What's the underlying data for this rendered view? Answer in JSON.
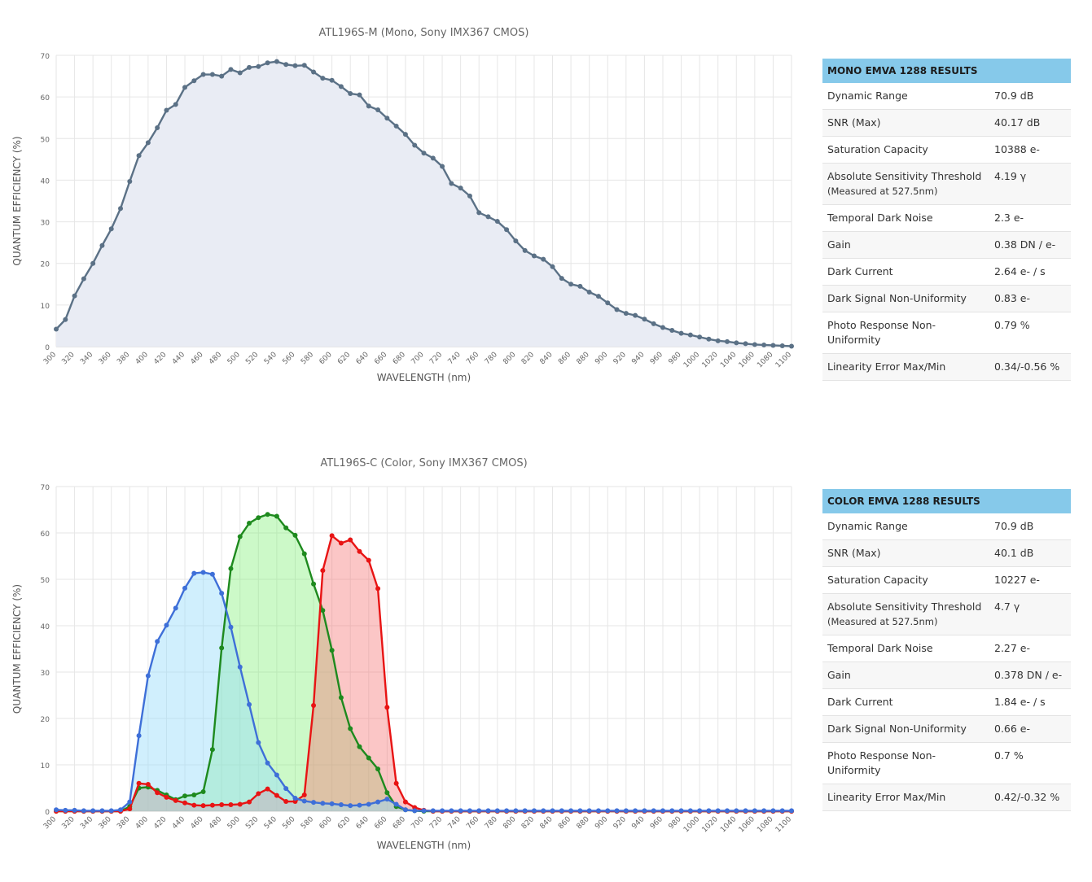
{
  "chart_data": [
    {
      "type": "area",
      "title": "ATL196S-M (Mono, Sony IMX367 CMOS)",
      "xlabel": "WAVELENGTH (nm)",
      "ylabel": "QUANTUM EFFICIENCY (%)",
      "xlim": [
        300,
        1100
      ],
      "ylim": [
        0,
        70
      ],
      "y_ticks": [
        0,
        10,
        20,
        30,
        40,
        50,
        60,
        70
      ],
      "x_ticks": [
        300,
        320,
        340,
        360,
        380,
        400,
        420,
        440,
        460,
        480,
        500,
        520,
        540,
        560,
        580,
        600,
        620,
        640,
        660,
        680,
        700,
        720,
        740,
        760,
        780,
        800,
        820,
        840,
        860,
        880,
        900,
        920,
        940,
        960,
        980,
        1000,
        1020,
        1040,
        1060,
        1080,
        1100
      ],
      "grid": true,
      "legend": "none",
      "x": [
        300,
        310,
        320,
        330,
        340,
        350,
        360,
        370,
        380,
        390,
        400,
        410,
        420,
        430,
        440,
        450,
        460,
        470,
        480,
        490,
        500,
        510,
        520,
        530,
        540,
        550,
        560,
        570,
        580,
        590,
        600,
        610,
        620,
        630,
        640,
        650,
        660,
        670,
        680,
        690,
        700,
        710,
        720,
        730,
        740,
        750,
        760,
        770,
        780,
        790,
        800,
        810,
        820,
        830,
        840,
        850,
        860,
        870,
        880,
        890,
        900,
        910,
        920,
        930,
        940,
        950,
        960,
        970,
        980,
        990,
        1000,
        1010,
        1020,
        1030,
        1040,
        1050,
        1060,
        1070,
        1080,
        1090,
        1100
      ],
      "series": [
        {
          "color": "#5b7186",
          "fill": "#e9ecf4",
          "values": [
            4.2,
            6.5,
            12.2,
            16.3,
            20,
            24.3,
            28.3,
            33.2,
            39.7,
            45.9,
            49,
            52.6,
            56.8,
            58.2,
            62.3,
            63.9,
            65.4,
            65.4,
            65,
            66.6,
            65.8,
            67.1,
            67.3,
            68.2,
            68.5,
            67.8,
            67.5,
            67.6,
            66,
            64.5,
            64,
            62.5,
            60.8,
            60.5,
            57.8,
            56.9,
            54.9,
            53,
            51,
            48.4,
            46.5,
            45.3,
            43.3,
            39.2,
            38.1,
            36.2,
            32.2,
            31.2,
            30.1,
            28.1,
            25.4,
            23.1,
            21.8,
            21,
            19.2,
            16.4,
            15,
            14.5,
            13.1,
            12.1,
            10.5,
            8.9,
            8,
            7.5,
            6.6,
            5.5,
            4.6,
            3.9,
            3.2,
            2.8,
            2.3,
            1.8,
            1.4,
            1.2,
            0.9,
            0.7,
            0.5,
            0.4,
            0.3,
            0.2,
            0.1
          ]
        }
      ]
    },
    {
      "type": "area",
      "title": "ATL196S-C (Color, Sony IMX367 CMOS)",
      "xlabel": "WAVELENGTH (nm)",
      "ylabel": "QUANTUM EFFICIENCY (%)",
      "xlim": [
        300,
        1100
      ],
      "ylim": [
        0,
        70
      ],
      "y_ticks": [
        0,
        10,
        20,
        30,
        40,
        50,
        60,
        70
      ],
      "x_ticks": [
        300,
        320,
        340,
        360,
        380,
        400,
        420,
        440,
        460,
        480,
        500,
        520,
        540,
        560,
        580,
        600,
        620,
        640,
        660,
        680,
        700,
        720,
        740,
        760,
        780,
        800,
        820,
        840,
        860,
        880,
        900,
        920,
        940,
        960,
        980,
        1000,
        1020,
        1040,
        1060,
        1080,
        1100
      ],
      "grid": true,
      "legend": "none",
      "x": [
        300,
        310,
        320,
        330,
        340,
        350,
        360,
        370,
        380,
        390,
        400,
        410,
        420,
        430,
        440,
        450,
        460,
        470,
        480,
        490,
        500,
        510,
        520,
        530,
        540,
        550,
        560,
        570,
        580,
        590,
        600,
        610,
        620,
        630,
        640,
        650,
        660,
        670,
        680,
        690,
        700,
        710,
        720,
        730,
        740,
        750,
        760,
        770,
        780,
        790,
        800,
        810,
        820,
        830,
        840,
        850,
        860,
        870,
        880,
        890,
        900,
        910,
        920,
        930,
        940,
        950,
        960,
        970,
        980,
        990,
        1000,
        1010,
        1020,
        1030,
        1040,
        1050,
        1060,
        1070,
        1080,
        1090,
        1100
      ],
      "series": [
        {
          "color": "#1e8a1e",
          "fill": "rgba(120,240,110,0.38)",
          "values": [
            0,
            0,
            0,
            0,
            0,
            0,
            0,
            0,
            1,
            5,
            5.2,
            4.5,
            3.5,
            2.5,
            3.3,
            3.5,
            4.2,
            13.3,
            35.2,
            52.3,
            59.2,
            62.1,
            63.3,
            64,
            63.6,
            61.1,
            59.5,
            55.5,
            49,
            43.3,
            34.7,
            24.5,
            17.8,
            13.9,
            11.5,
            9.1,
            4,
            1,
            0.3,
            0.1,
            0,
            0,
            0,
            0,
            0,
            0,
            0,
            0,
            0,
            0,
            0,
            0,
            0,
            0,
            0,
            0,
            0,
            0,
            0,
            0,
            0,
            0,
            0,
            0,
            0,
            0,
            0,
            0,
            0,
            0,
            0,
            0,
            0,
            0,
            0,
            0,
            0,
            0,
            0,
            0,
            0
          ]
        },
        {
          "color": "#e81414",
          "fill": "rgba(245,120,120,0.42)",
          "values": [
            0,
            0,
            0,
            0,
            0,
            0,
            0,
            0,
            0.5,
            6,
            5.8,
            4,
            3,
            2.3,
            1.8,
            1.3,
            1.2,
            1.3,
            1.4,
            1.4,
            1.5,
            2,
            3.8,
            4.8,
            3.4,
            2.1,
            2.1,
            3.5,
            22.8,
            51.9,
            59.4,
            57.8,
            58.5,
            56,
            54.1,
            48,
            22.4,
            6,
            2,
            0.8,
            0.2,
            0,
            0,
            0,
            0,
            0,
            0,
            0,
            0,
            0,
            0,
            0,
            0,
            0,
            0,
            0,
            0,
            0,
            0,
            0,
            0,
            0,
            0,
            0,
            0,
            0,
            0,
            0,
            0,
            0,
            0,
            0,
            0,
            0,
            0,
            0,
            0,
            0,
            0,
            0,
            0
          ]
        },
        {
          "color": "#3e6fd8",
          "fill": "rgba(150,220,250,0.45)",
          "values": [
            0.3,
            0.2,
            0.2,
            0.1,
            0.1,
            0.1,
            0.1,
            0.3,
            2,
            16.3,
            29.2,
            36.6,
            40.1,
            43.8,
            48.1,
            51.3,
            51.5,
            51.1,
            47,
            39.7,
            31.1,
            23,
            14.8,
            10.4,
            7.8,
            4.9,
            2.8,
            2.2,
            1.9,
            1.7,
            1.6,
            1.4,
            1.2,
            1.3,
            1.5,
            2,
            2.6,
            1.5,
            0.3,
            0.1,
            0.1,
            0.1,
            0.1,
            0.1,
            0.1,
            0.1,
            0.1,
            0.1,
            0.1,
            0.1,
            0.1,
            0.1,
            0.1,
            0.1,
            0.1,
            0.1,
            0.1,
            0.1,
            0.1,
            0.1,
            0.1,
            0.1,
            0.1,
            0.1,
            0.1,
            0.1,
            0.1,
            0.1,
            0.1,
            0.1,
            0.1,
            0.1,
            0.1,
            0.1,
            0.1,
            0.1,
            0.1,
            0.1,
            0.1,
            0.1,
            0.1
          ]
        }
      ]
    }
  ],
  "mono_table": {
    "header": "MONO EMVA 1288 RESULTS",
    "rows": [
      {
        "label": "Dynamic Range",
        "value": "70.9 dB"
      },
      {
        "label": "SNR (Max)",
        "value": "40.17 dB"
      },
      {
        "label": "Saturation Capacity",
        "value": "10388 e-"
      },
      {
        "label": "Absolute Sensitivity Threshold",
        "note": "(Measured at 527.5nm)",
        "value": "4.19 γ"
      },
      {
        "label": "Temporal Dark Noise",
        "value": "2.3 e-"
      },
      {
        "label": "Gain",
        "value": "0.38 DN / e-"
      },
      {
        "label": "Dark Current",
        "value": "2.64 e- / s"
      },
      {
        "label": "Dark Signal Non-Uniformity",
        "value": "0.83 e-"
      },
      {
        "label": "Photo Response Non-Uniformity",
        "value": "0.79 %"
      },
      {
        "label": "Linearity Error Max/Min",
        "value": "0.34/-0.56 %"
      }
    ]
  },
  "color_table": {
    "header": "COLOR EMVA 1288 RESULTS",
    "rows": [
      {
        "label": "Dynamic Range",
        "value": "70.9 dB"
      },
      {
        "label": "SNR (Max)",
        "value": "40.1 dB"
      },
      {
        "label": "Saturation Capacity",
        "value": "10227 e-"
      },
      {
        "label": "Absolute Sensitivity Threshold",
        "note": "(Measured at 527.5nm)",
        "value": "4.7 γ"
      },
      {
        "label": "Temporal Dark Noise",
        "value": "2.27 e-"
      },
      {
        "label": "Gain",
        "value": "0.378 DN / e-"
      },
      {
        "label": "Dark Current",
        "value": "1.84 e- / s"
      },
      {
        "label": "Dark Signal Non-Uniformity",
        "value": "0.66 e-"
      },
      {
        "label": "Photo Response Non-Uniformity",
        "value": "0.7 %"
      },
      {
        "label": "Linearity Error Max/Min",
        "value": "0.42/-0.32 %"
      }
    ]
  }
}
